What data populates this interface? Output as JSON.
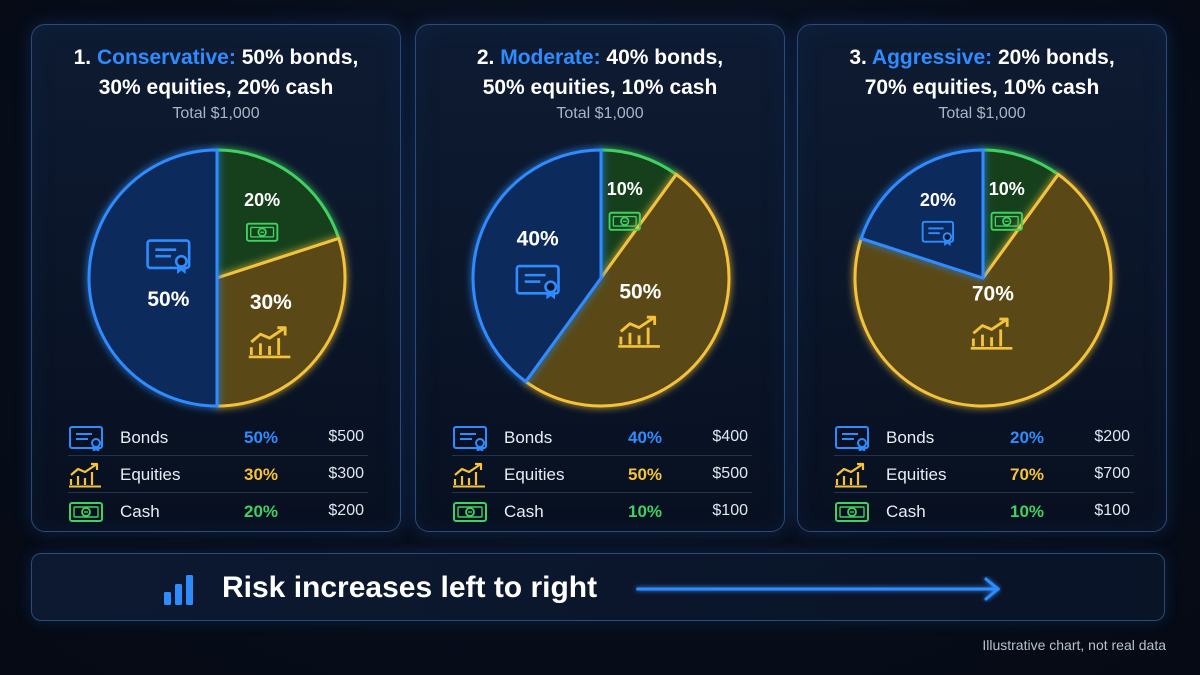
{
  "colors": {
    "bonds": "#2f8cff",
    "equities": "#f5c33b",
    "cash": "#3fd162",
    "bonds_fill": "#0f2a5c",
    "equities_fill": "#5a4812",
    "cash_fill": "#16401f"
  },
  "chart_data": [
    {
      "type": "pie",
      "title_number": "1.",
      "title_name": "Conservative:",
      "title_rest_line1": "50% bonds,",
      "title_line2": "30% equities, 20% cash",
      "total": "Total $1,000",
      "categories": [
        "Bonds",
        "Equities",
        "Cash"
      ],
      "values": [
        50,
        30,
        20
      ],
      "slice_labels": [
        "50%",
        "30%",
        "20%"
      ],
      "legend": [
        {
          "name": "Bonds",
          "pct": "50%",
          "amount": "$500"
        },
        {
          "name": "Equities",
          "pct": "30%",
          "amount": "$300"
        },
        {
          "name": "Cash",
          "pct": "20%",
          "amount": "$200"
        }
      ]
    },
    {
      "type": "pie",
      "title_number": "2.",
      "title_name": "Moderate:",
      "title_rest_line1": "40% bonds,",
      "title_line2": "50% equities, 10% cash",
      "total": "Total $1,000",
      "categories": [
        "Bonds",
        "Equities",
        "Cash"
      ],
      "values": [
        40,
        50,
        10
      ],
      "slice_labels": [
        "40%",
        "50%",
        "10%"
      ],
      "legend": [
        {
          "name": "Bonds",
          "pct": "40%",
          "amount": "$400"
        },
        {
          "name": "Equities",
          "pct": "50%",
          "amount": "$500"
        },
        {
          "name": "Cash",
          "pct": "10%",
          "amount": "$100"
        }
      ]
    },
    {
      "type": "pie",
      "title_number": "3.",
      "title_name": "Aggressive:",
      "title_rest_line1": "20% bonds,",
      "title_line2": "70% equities, 10% cash",
      "total": "Total $1,000",
      "categories": [
        "Bonds",
        "Equities",
        "Cash"
      ],
      "values": [
        20,
        70,
        10
      ],
      "slice_labels": [
        "20%",
        "70%",
        "10%"
      ],
      "legend": [
        {
          "name": "Bonds",
          "pct": "20%",
          "amount": "$200"
        },
        {
          "name": "Equities",
          "pct": "70%",
          "amount": "$700"
        },
        {
          "name": "Cash",
          "pct": "10%",
          "amount": "$100"
        }
      ]
    }
  ],
  "risk_banner": {
    "text": "Risk increases left to right",
    "icon": "bar-chart-icon"
  },
  "footnote": "Illustrative chart, not real data"
}
